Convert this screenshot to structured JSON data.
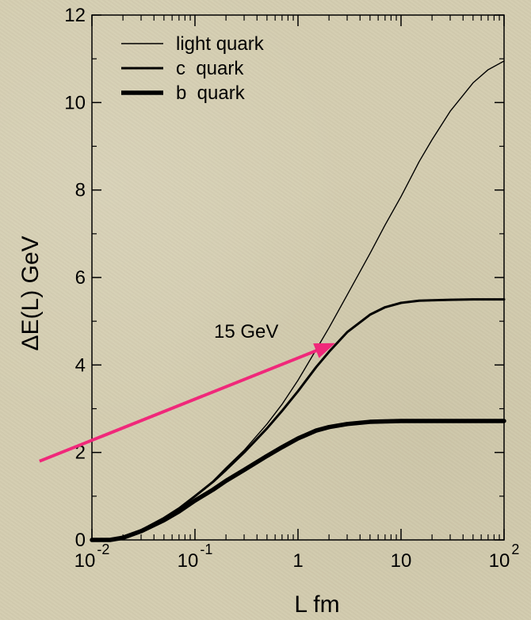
{
  "chart_data": {
    "type": "line",
    "xlabel": "L fm",
    "ylabel": "ΔE(L) GeV",
    "x_scale": "log",
    "xlim": [
      0.01,
      100
    ],
    "ylim": [
      0,
      12
    ],
    "grid": false,
    "legend_position": "top-left",
    "y_ticks": [
      {
        "value": 0,
        "label": "0"
      },
      {
        "value": 2,
        "label": "2"
      },
      {
        "value": 4,
        "label": "4"
      },
      {
        "value": 6,
        "label": "6"
      },
      {
        "value": 8,
        "label": "8"
      },
      {
        "value": 10,
        "label": "10"
      },
      {
        "value": 12,
        "label": "12"
      }
    ],
    "x_ticks": [
      {
        "value": 0.01,
        "base": "10",
        "exp": "-2"
      },
      {
        "value": 0.1,
        "base": "10",
        "exp": "-1"
      },
      {
        "value": 1,
        "base": "1",
        "exp": ""
      },
      {
        "value": 10,
        "base": "10",
        "exp": ""
      },
      {
        "value": 100,
        "base": "10",
        "exp": "2"
      }
    ],
    "series": [
      {
        "name": "light quark",
        "line_width": "thin",
        "x": [
          0.01,
          0.015,
          0.02,
          0.03,
          0.05,
          0.07,
          0.1,
          0.15,
          0.2,
          0.3,
          0.5,
          0.7,
          1,
          1.5,
          2,
          3,
          5,
          7,
          10,
          15,
          20,
          30,
          50,
          70,
          100
        ],
        "y": [
          0,
          0,
          0.05,
          0.22,
          0.5,
          0.72,
          1,
          1.35,
          1.65,
          2.05,
          2.65,
          3.1,
          3.65,
          4.35,
          4.85,
          5.6,
          6.55,
          7.2,
          7.85,
          8.65,
          9.15,
          9.8,
          10.45,
          10.75,
          10.95
        ]
      },
      {
        "name": "c  quark",
        "line_width": "medium",
        "x": [
          0.01,
          0.015,
          0.02,
          0.03,
          0.05,
          0.07,
          0.1,
          0.15,
          0.2,
          0.3,
          0.5,
          0.7,
          1,
          1.5,
          2,
          3,
          5,
          7,
          10,
          15,
          20,
          30,
          50,
          70,
          100
        ],
        "y": [
          0,
          0,
          0.05,
          0.22,
          0.5,
          0.72,
          1,
          1.33,
          1.6,
          2.0,
          2.55,
          2.95,
          3.4,
          3.95,
          4.3,
          4.75,
          5.15,
          5.32,
          5.42,
          5.47,
          5.48,
          5.49,
          5.5,
          5.5,
          5.5
        ]
      },
      {
        "name": "b  quark",
        "line_width": "thick",
        "x": [
          0.01,
          0.015,
          0.02,
          0.03,
          0.05,
          0.07,
          0.1,
          0.15,
          0.2,
          0.3,
          0.5,
          0.7,
          1,
          1.5,
          2,
          3,
          5,
          7,
          10,
          15,
          20,
          30,
          50,
          70,
          100
        ],
        "y": [
          0,
          0,
          0.05,
          0.2,
          0.45,
          0.65,
          0.9,
          1.15,
          1.35,
          1.6,
          1.92,
          2.12,
          2.32,
          2.5,
          2.58,
          2.65,
          2.7,
          2.71,
          2.72,
          2.72,
          2.72,
          2.72,
          2.72,
          2.72,
          2.72
        ]
      }
    ],
    "annotations": [
      {
        "text": "15 GeV",
        "x": 0.4,
        "y": 4.8
      }
    ],
    "arrow": {
      "color": "#f0287a",
      "from": {
        "x": 0.0031,
        "y": 1.8
      },
      "to": {
        "x": 2.3,
        "y": 4.5
      }
    }
  }
}
